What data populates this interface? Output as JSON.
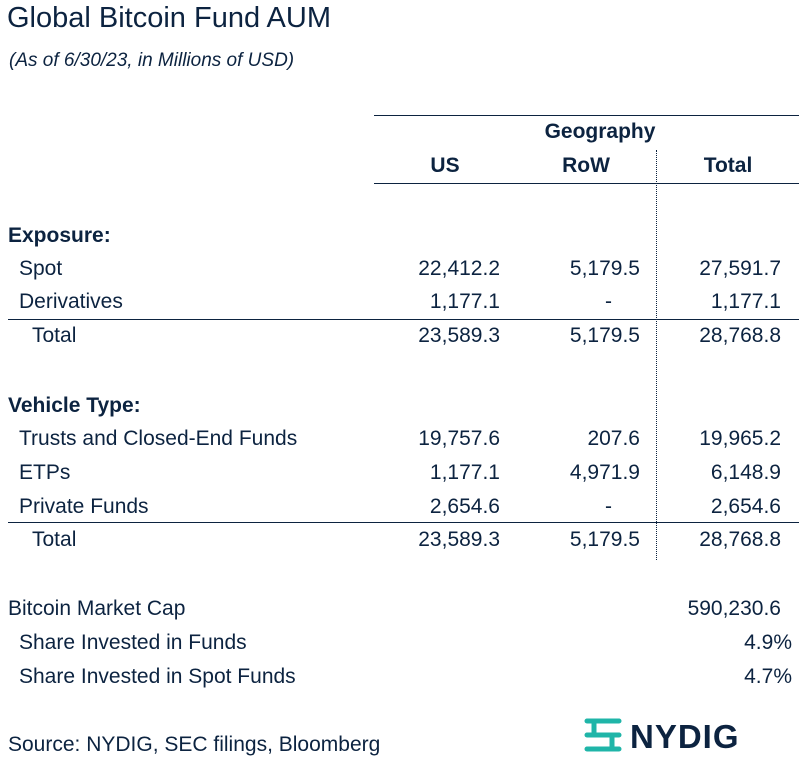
{
  "title": "Global Bitcoin Fund AUM",
  "subtitle": "(As of 6/30/23, in Millions of USD)",
  "header": {
    "group_label": "Geography",
    "columns": [
      "US",
      "RoW",
      "Total"
    ]
  },
  "exposure": {
    "heading": "Exposure:",
    "rows": [
      {
        "label": "Spot",
        "us": "22,412.2",
        "row": "5,179.5",
        "total": "27,591.7"
      },
      {
        "label": "Derivatives",
        "us": "1,177.1",
        "row": "-",
        "total": "1,177.1"
      }
    ],
    "total": {
      "label": "Total",
      "us": "23,589.3",
      "row": "5,179.5",
      "total": "28,768.8"
    }
  },
  "vehicle": {
    "heading": "Vehicle Type:",
    "rows": [
      {
        "label": "Trusts and Closed-End Funds",
        "us": "19,757.6",
        "row": "207.6",
        "total": "19,965.2"
      },
      {
        "label": "ETPs",
        "us": "1,177.1",
        "row": "4,971.9",
        "total": "6,148.9"
      },
      {
        "label": "Private Funds",
        "us": "2,654.6",
        "row": "-",
        "total": "2,654.6"
      }
    ],
    "total": {
      "label": "Total",
      "us": "23,589.3",
      "row": "5,179.5",
      "total": "28,768.8"
    }
  },
  "market": {
    "cap_label": "Bitcoin Market Cap",
    "cap_value": "590,230.6",
    "share_funds_label": "Share Invested in Funds",
    "share_funds_value": "4.9%",
    "share_spot_label": "Share Invested in Spot Funds",
    "share_spot_value": "4.7%"
  },
  "source": "Source: NYDIG, SEC filings, Bloomberg",
  "logo": {
    "text": "NYDIG",
    "icon": "nydig-logo-icon",
    "icon_color": "#1fb5a8"
  },
  "colors": {
    "text": "#0c2340"
  }
}
